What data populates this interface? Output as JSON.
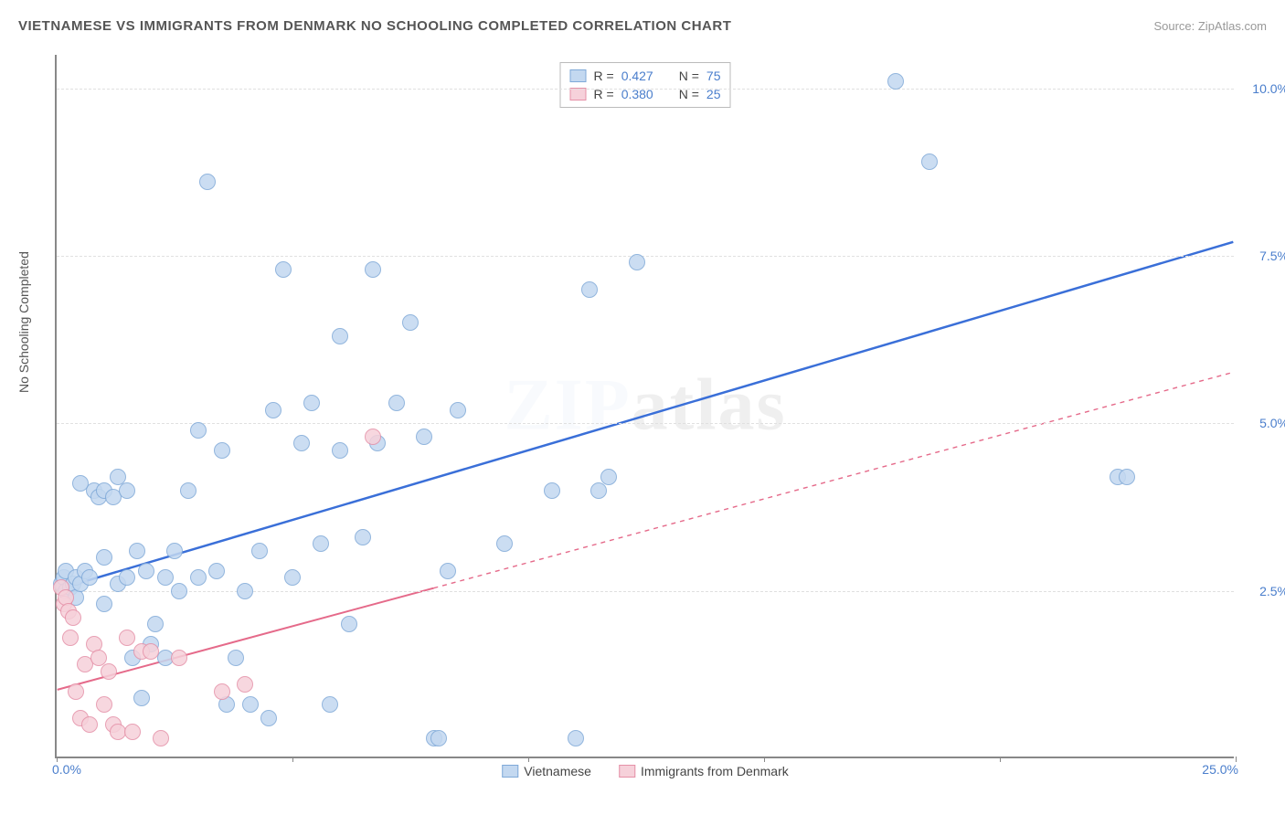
{
  "header": {
    "title": "VIETNAMESE VS IMMIGRANTS FROM DENMARK NO SCHOOLING COMPLETED CORRELATION CHART",
    "source": "Source: ZipAtlas.com"
  },
  "ylabel": "No Schooling Completed",
  "watermark": {
    "a": "ZIP",
    "b": "atlas"
  },
  "axes": {
    "xmin": 0,
    "xmax": 25,
    "ymin": 0,
    "ymax": 10.5,
    "xticks": [
      0,
      5,
      10,
      15,
      20,
      25
    ],
    "xlabel_min": "0.0%",
    "xlabel_max": "25.0%",
    "ygrid": [
      2.5,
      5.0,
      7.5,
      10.0
    ],
    "ylabels": [
      "2.5%",
      "5.0%",
      "7.5%",
      "10.0%"
    ]
  },
  "series": [
    {
      "name": "Vietnamese",
      "marker_fill": "#c3d8f0",
      "marker_stroke": "#7fa9d8",
      "marker_r": 9,
      "line_color": "#3a6fd8",
      "line_width": 2.5,
      "line_dash": "none",
      "trend": {
        "x1": 0,
        "y1": 2.5,
        "x2": 25,
        "y2": 7.7
      },
      "R": "0.427",
      "N": "75",
      "points": [
        [
          0.1,
          2.6
        ],
        [
          0.15,
          2.7
        ],
        [
          0.2,
          2.5
        ],
        [
          0.2,
          2.8
        ],
        [
          0.3,
          2.55
        ],
        [
          0.35,
          2.6
        ],
        [
          0.4,
          2.7
        ],
        [
          0.4,
          2.4
        ],
        [
          0.5,
          2.6
        ],
        [
          0.6,
          2.8
        ],
        [
          0.5,
          4.1
        ],
        [
          0.7,
          2.7
        ],
        [
          0.8,
          4.0
        ],
        [
          0.9,
          3.9
        ],
        [
          1.0,
          2.3
        ],
        [
          1.0,
          4.0
        ],
        [
          1.0,
          3.0
        ],
        [
          1.2,
          3.9
        ],
        [
          1.3,
          4.2
        ],
        [
          1.3,
          2.6
        ],
        [
          1.5,
          2.7
        ],
        [
          1.5,
          4.0
        ],
        [
          1.6,
          1.5
        ],
        [
          1.7,
          3.1
        ],
        [
          1.8,
          0.9
        ],
        [
          1.9,
          2.8
        ],
        [
          2.0,
          1.7
        ],
        [
          2.1,
          2.0
        ],
        [
          2.3,
          1.5
        ],
        [
          2.3,
          2.7
        ],
        [
          2.5,
          3.1
        ],
        [
          2.6,
          2.5
        ],
        [
          2.8,
          4.0
        ],
        [
          3.0,
          2.7
        ],
        [
          3.0,
          4.9
        ],
        [
          3.2,
          8.6
        ],
        [
          3.4,
          2.8
        ],
        [
          3.5,
          4.6
        ],
        [
          3.6,
          0.8
        ],
        [
          3.8,
          1.5
        ],
        [
          4.0,
          2.5
        ],
        [
          4.1,
          0.8
        ],
        [
          4.3,
          3.1
        ],
        [
          4.5,
          0.6
        ],
        [
          4.6,
          5.2
        ],
        [
          4.8,
          7.3
        ],
        [
          5.0,
          2.7
        ],
        [
          5.2,
          4.7
        ],
        [
          5.4,
          5.3
        ],
        [
          5.6,
          3.2
        ],
        [
          5.8,
          0.8
        ],
        [
          6.0,
          6.3
        ],
        [
          6.0,
          4.6
        ],
        [
          6.2,
          2.0
        ],
        [
          6.5,
          3.3
        ],
        [
          6.7,
          7.3
        ],
        [
          6.8,
          4.7
        ],
        [
          7.2,
          5.3
        ],
        [
          7.5,
          6.5
        ],
        [
          7.8,
          4.8
        ],
        [
          8.0,
          0.3
        ],
        [
          8.1,
          0.3
        ],
        [
          8.3,
          2.8
        ],
        [
          8.5,
          5.2
        ],
        [
          9.5,
          3.2
        ],
        [
          10.5,
          4.0
        ],
        [
          11.0,
          0.3
        ],
        [
          11.3,
          7.0
        ],
        [
          11.5,
          4.0
        ],
        [
          11.7,
          4.2
        ],
        [
          12.3,
          7.4
        ],
        [
          17.8,
          10.1
        ],
        [
          18.5,
          8.9
        ],
        [
          22.5,
          4.2
        ],
        [
          22.7,
          4.2
        ]
      ]
    },
    {
      "name": "Immigrants from Denmark",
      "marker_fill": "#f6d1da",
      "marker_stroke": "#e590a7",
      "marker_r": 9,
      "line_color": "#e56a8a",
      "line_width": 2,
      "line_dash": "5,5",
      "trend": {
        "x1": 0,
        "y1": 1.0,
        "x2": 25,
        "y2": 5.75
      },
      "trend_solid_until": 8,
      "R": "0.380",
      "N": "25",
      "points": [
        [
          0.1,
          2.55
        ],
        [
          0.15,
          2.3
        ],
        [
          0.2,
          2.4
        ],
        [
          0.25,
          2.2
        ],
        [
          0.3,
          1.8
        ],
        [
          0.35,
          2.1
        ],
        [
          0.4,
          1.0
        ],
        [
          0.5,
          0.6
        ],
        [
          0.6,
          1.4
        ],
        [
          0.7,
          0.5
        ],
        [
          0.8,
          1.7
        ],
        [
          0.9,
          1.5
        ],
        [
          1.0,
          0.8
        ],
        [
          1.1,
          1.3
        ],
        [
          1.2,
          0.5
        ],
        [
          1.3,
          0.4
        ],
        [
          1.5,
          1.8
        ],
        [
          1.6,
          0.4
        ],
        [
          1.8,
          1.6
        ],
        [
          2.0,
          1.6
        ],
        [
          2.2,
          0.3
        ],
        [
          2.6,
          1.5
        ],
        [
          3.5,
          1.0
        ],
        [
          4.0,
          1.1
        ],
        [
          6.7,
          4.8
        ]
      ]
    }
  ],
  "legend_top_labels": {
    "R": "R =",
    "N": "N ="
  },
  "legend_bottom": [
    "Vietnamese",
    "Immigrants from Denmark"
  ]
}
